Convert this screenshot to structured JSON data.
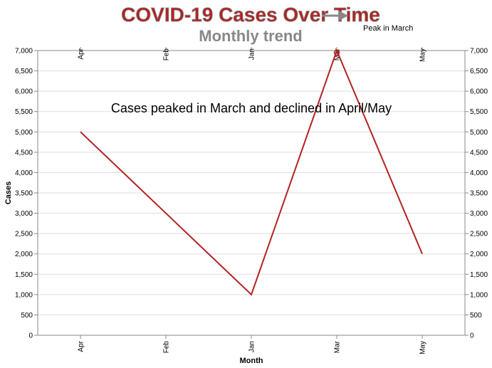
{
  "chart_data": {
    "type": "line",
    "title": "COVID-19 Cases Over Time",
    "subtitle": "Monthly trend",
    "xlabel": "Month",
    "ylabel": "Cases",
    "categories": [
      "Apr",
      "Feb",
      "Jan",
      "Mar",
      "May"
    ],
    "values": [
      5000,
      3000,
      1000,
      7000,
      2000
    ],
    "ylim": [
      0,
      7000
    ],
    "yticks": [
      0,
      500,
      1000,
      1500,
      2000,
      2500,
      3000,
      3500,
      4000,
      4500,
      5000,
      5500,
      6000,
      6500,
      7000
    ],
    "ytick_labels": [
      "0",
      "500",
      "1,000",
      "1,500",
      "2,000",
      "2,500",
      "3,000",
      "3,500",
      "4,000",
      "4,500",
      "5,000",
      "5,500",
      "6,000",
      "6,500",
      "7,000"
    ],
    "line_color": "#b22222",
    "title_color": "#b22222",
    "subtitle_color": "#888888",
    "grid": true,
    "annotations": {
      "note": "Cases peaked in March and declined in April/May",
      "peak_label": "Peak in March",
      "peak_category": "Mar",
      "peak_value": 7000
    }
  }
}
